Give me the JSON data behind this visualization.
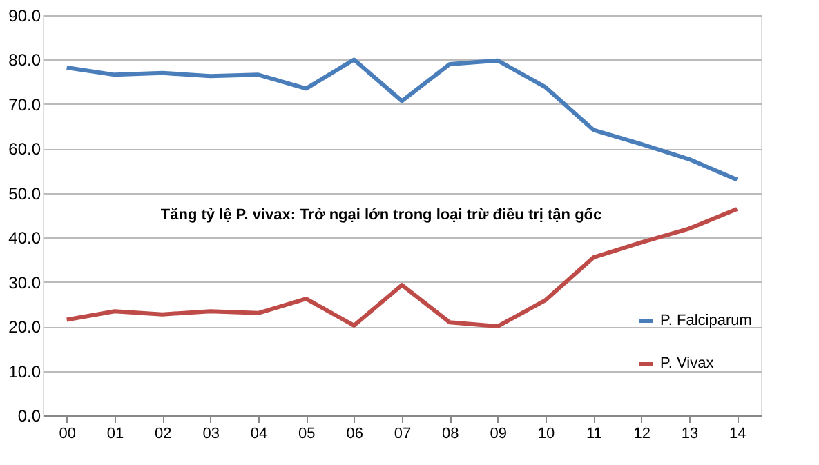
{
  "chart_data": {
    "type": "line",
    "categories": [
      "00",
      "01",
      "02",
      "03",
      "04",
      "05",
      "06",
      "07",
      "08",
      "09",
      "10",
      "11",
      "12",
      "13",
      "14"
    ],
    "series": [
      {
        "name": "P. Falciparum",
        "color": "#4a7ebb",
        "values": [
          78.2,
          76.6,
          77.0,
          76.3,
          76.6,
          73.5,
          80.0,
          70.7,
          79.0,
          79.8,
          73.8,
          64.2,
          61.0,
          57.6,
          53.0
        ]
      },
      {
        "name": "P. Vivax",
        "color": "#be4b48",
        "values": [
          21.5,
          23.4,
          22.7,
          23.4,
          23.0,
          26.2,
          20.2,
          29.3,
          20.9,
          20.0,
          25.9,
          35.5,
          38.9,
          42.0,
          46.4
        ]
      }
    ],
    "ylim": [
      0,
      90
    ],
    "yticks": [
      {
        "value": 0,
        "label": "0.0"
      },
      {
        "value": 10,
        "label": "10.0"
      },
      {
        "value": 20,
        "label": "20.0"
      },
      {
        "value": 30,
        "label": "30.0"
      },
      {
        "value": 40,
        "label": "40.0"
      },
      {
        "value": 50,
        "label": "50.0"
      },
      {
        "value": 60,
        "label": "60.0"
      },
      {
        "value": 70,
        "label": "70.0"
      },
      {
        "value": 80,
        "label": "80.0"
      },
      {
        "value": 90,
        "label": "90.0"
      }
    ],
    "annotations": [
      "Tăng tỷ lệ P. vivax: Trở ngại lớn trong loại trừ điều trị tận gốc"
    ],
    "grid": "y",
    "legend": "bottom right",
    "marker": "none",
    "line_style": "solid"
  }
}
